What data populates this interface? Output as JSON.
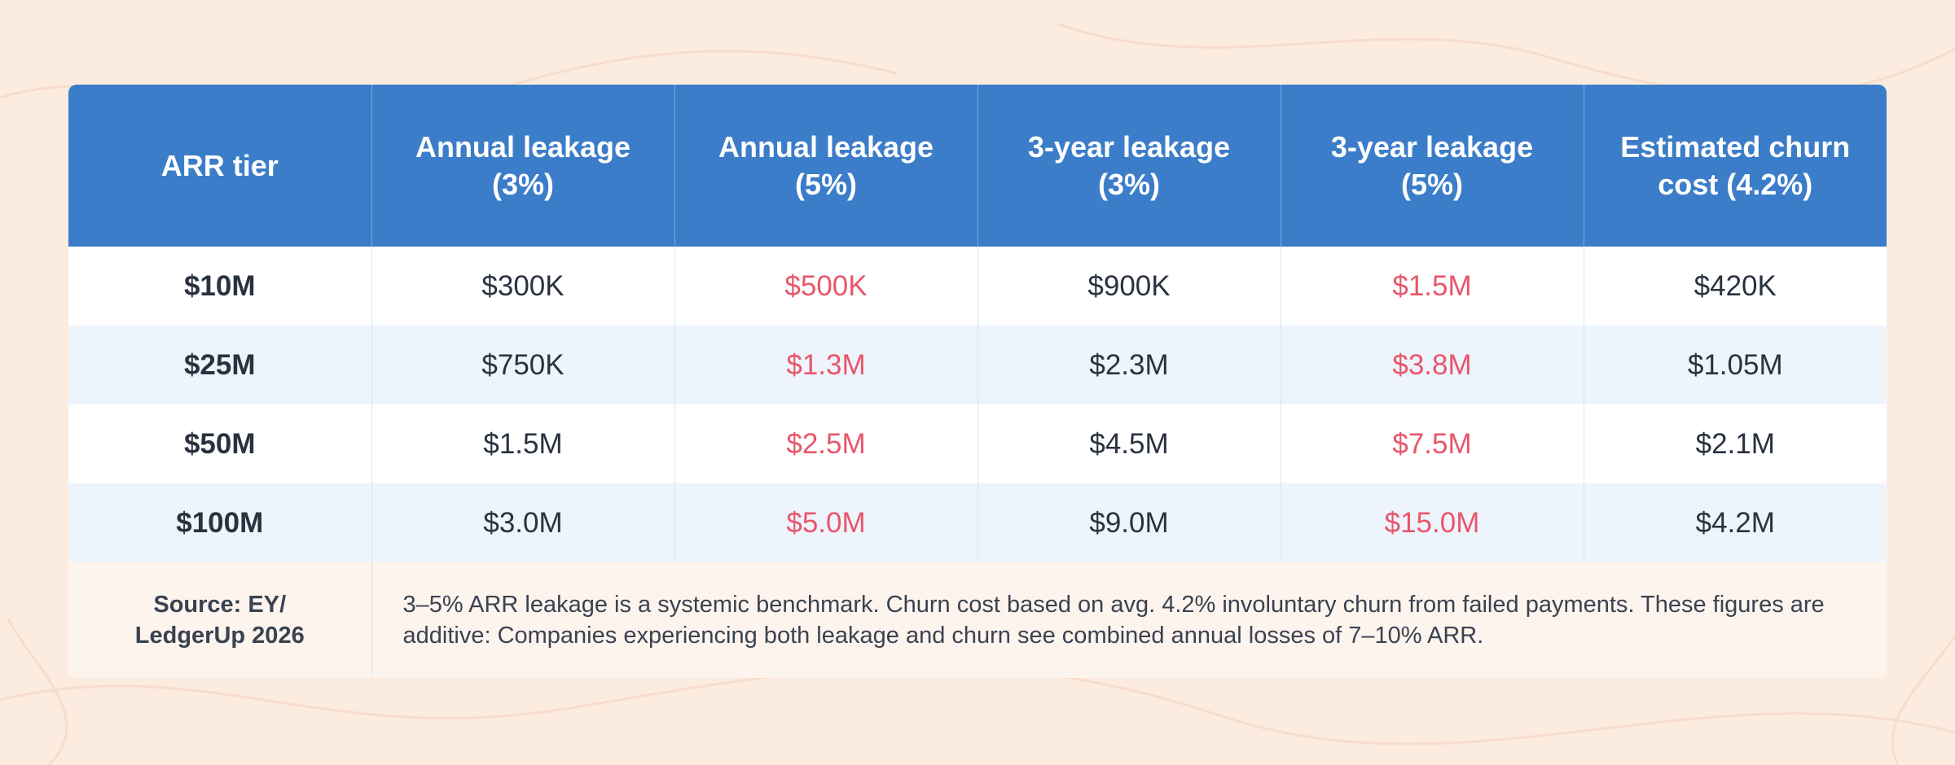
{
  "table": {
    "header": [
      "ARR tier",
      "Annual leakage (3%)",
      "Annual leakage (5%)",
      "3-year leakage (3%)",
      "3-year leakage (5%)",
      "Estimated churn cost (4.2%)"
    ],
    "rows": [
      [
        "$10M",
        "$300K",
        "$500K",
        "$900K",
        "$1.5M",
        "$420K"
      ],
      [
        "$25M",
        "$750K",
        "$1.3M",
        "$2.3M",
        "$3.8M",
        "$1.05M"
      ],
      [
        "$50M",
        "$1.5M",
        "$2.5M",
        "$4.5M",
        "$7.5M",
        "$2.1M"
      ],
      [
        "$100M",
        "$3.0M",
        "$5.0M",
        "$9.0M",
        "$15.0M",
        "$4.2M"
      ]
    ],
    "footer": {
      "source": "Source: EY/ LedgerUp 2026",
      "note": "3–5% ARR leakage is a systemic benchmark. Churn cost based on avg. 4.2% involuntary churn from failed payments. These figures are additive: Companies experiencing both leakage and churn see combined annual losses of 7–10% ARR."
    }
  }
}
